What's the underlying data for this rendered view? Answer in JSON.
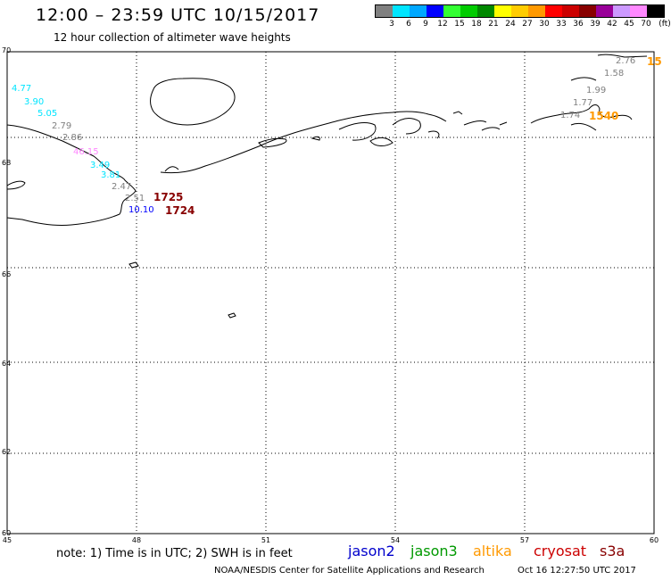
{
  "header": {
    "title": "12:00 – 23:59 UTC 10/15/2017",
    "subtitle": "12 hour collection of altimeter wave heights"
  },
  "legend": {
    "colors": [
      "#808080",
      "#00e5ff",
      "#00a8ff",
      "#0000ff",
      "#33ff33",
      "#00cc00",
      "#008800",
      "#ffff00",
      "#ffcc00",
      "#ff9900",
      "#ff0000",
      "#cc0000",
      "#880000",
      "#990099",
      "#cc99ff",
      "#ff88ff",
      "#000000"
    ],
    "ticks": [
      "3",
      "6",
      "9",
      "12",
      "15",
      "18",
      "21",
      "24",
      "27",
      "30",
      "33",
      "36",
      "39",
      "42",
      "45",
      "70",
      "(ft)"
    ]
  },
  "axes": {
    "lat_labels": [
      "70",
      "68",
      "66",
      "64",
      "62",
      "60"
    ],
    "lon_labels": [
      "45",
      "48",
      "51",
      "54",
      "57",
      "60"
    ]
  },
  "observations": [
    {
      "text": "4.77",
      "color": "#00e5ff"
    },
    {
      "text": "3.90",
      "color": "#00e5ff"
    },
    {
      "text": "5.05",
      "color": "#00e5ff"
    },
    {
      "text": "2.79",
      "color": "#808080"
    },
    {
      "text": "2.86",
      "color": "#808080"
    },
    {
      "text": "46.15",
      "color": "#ff88ff"
    },
    {
      "text": "3.49",
      "color": "#00e5ff"
    },
    {
      "text": "3.81",
      "color": "#00e5ff"
    },
    {
      "text": "2.47",
      "color": "#808080"
    },
    {
      "text": "2.51",
      "color": "#808080"
    },
    {
      "text": "10.10",
      "color": "#0000ff"
    },
    {
      "text": "1725",
      "color": "#880000"
    },
    {
      "text": "1724",
      "color": "#880000"
    },
    {
      "text": "2.76",
      "color": "#808080"
    },
    {
      "text": "15",
      "color": "#ff9900"
    },
    {
      "text": "1.58",
      "color": "#808080"
    },
    {
      "text": "1.99",
      "color": "#808080"
    },
    {
      "text": "1.77",
      "color": "#808080"
    },
    {
      "text": "1.74",
      "color": "#808080"
    },
    {
      "text": "1540",
      "color": "#ff9900"
    }
  ],
  "footer": {
    "note": "note: 1) Time is in UTC; 2) SWH is in feet",
    "missions": [
      {
        "text": "jason2",
        "color": "#0000cc"
      },
      {
        "text": "jason3",
        "color": "#009900"
      },
      {
        "text": "altika",
        "color": "#ff9900"
      },
      {
        "text": "cryosat",
        "color": "#cc0000"
      },
      {
        "text": "s3a",
        "color": "#880000"
      }
    ],
    "credit": "NOAA/NESDIS Center for Satellite Applications and Research",
    "timestamp": "Oct 16 12:27:50 UTC 2017"
  }
}
